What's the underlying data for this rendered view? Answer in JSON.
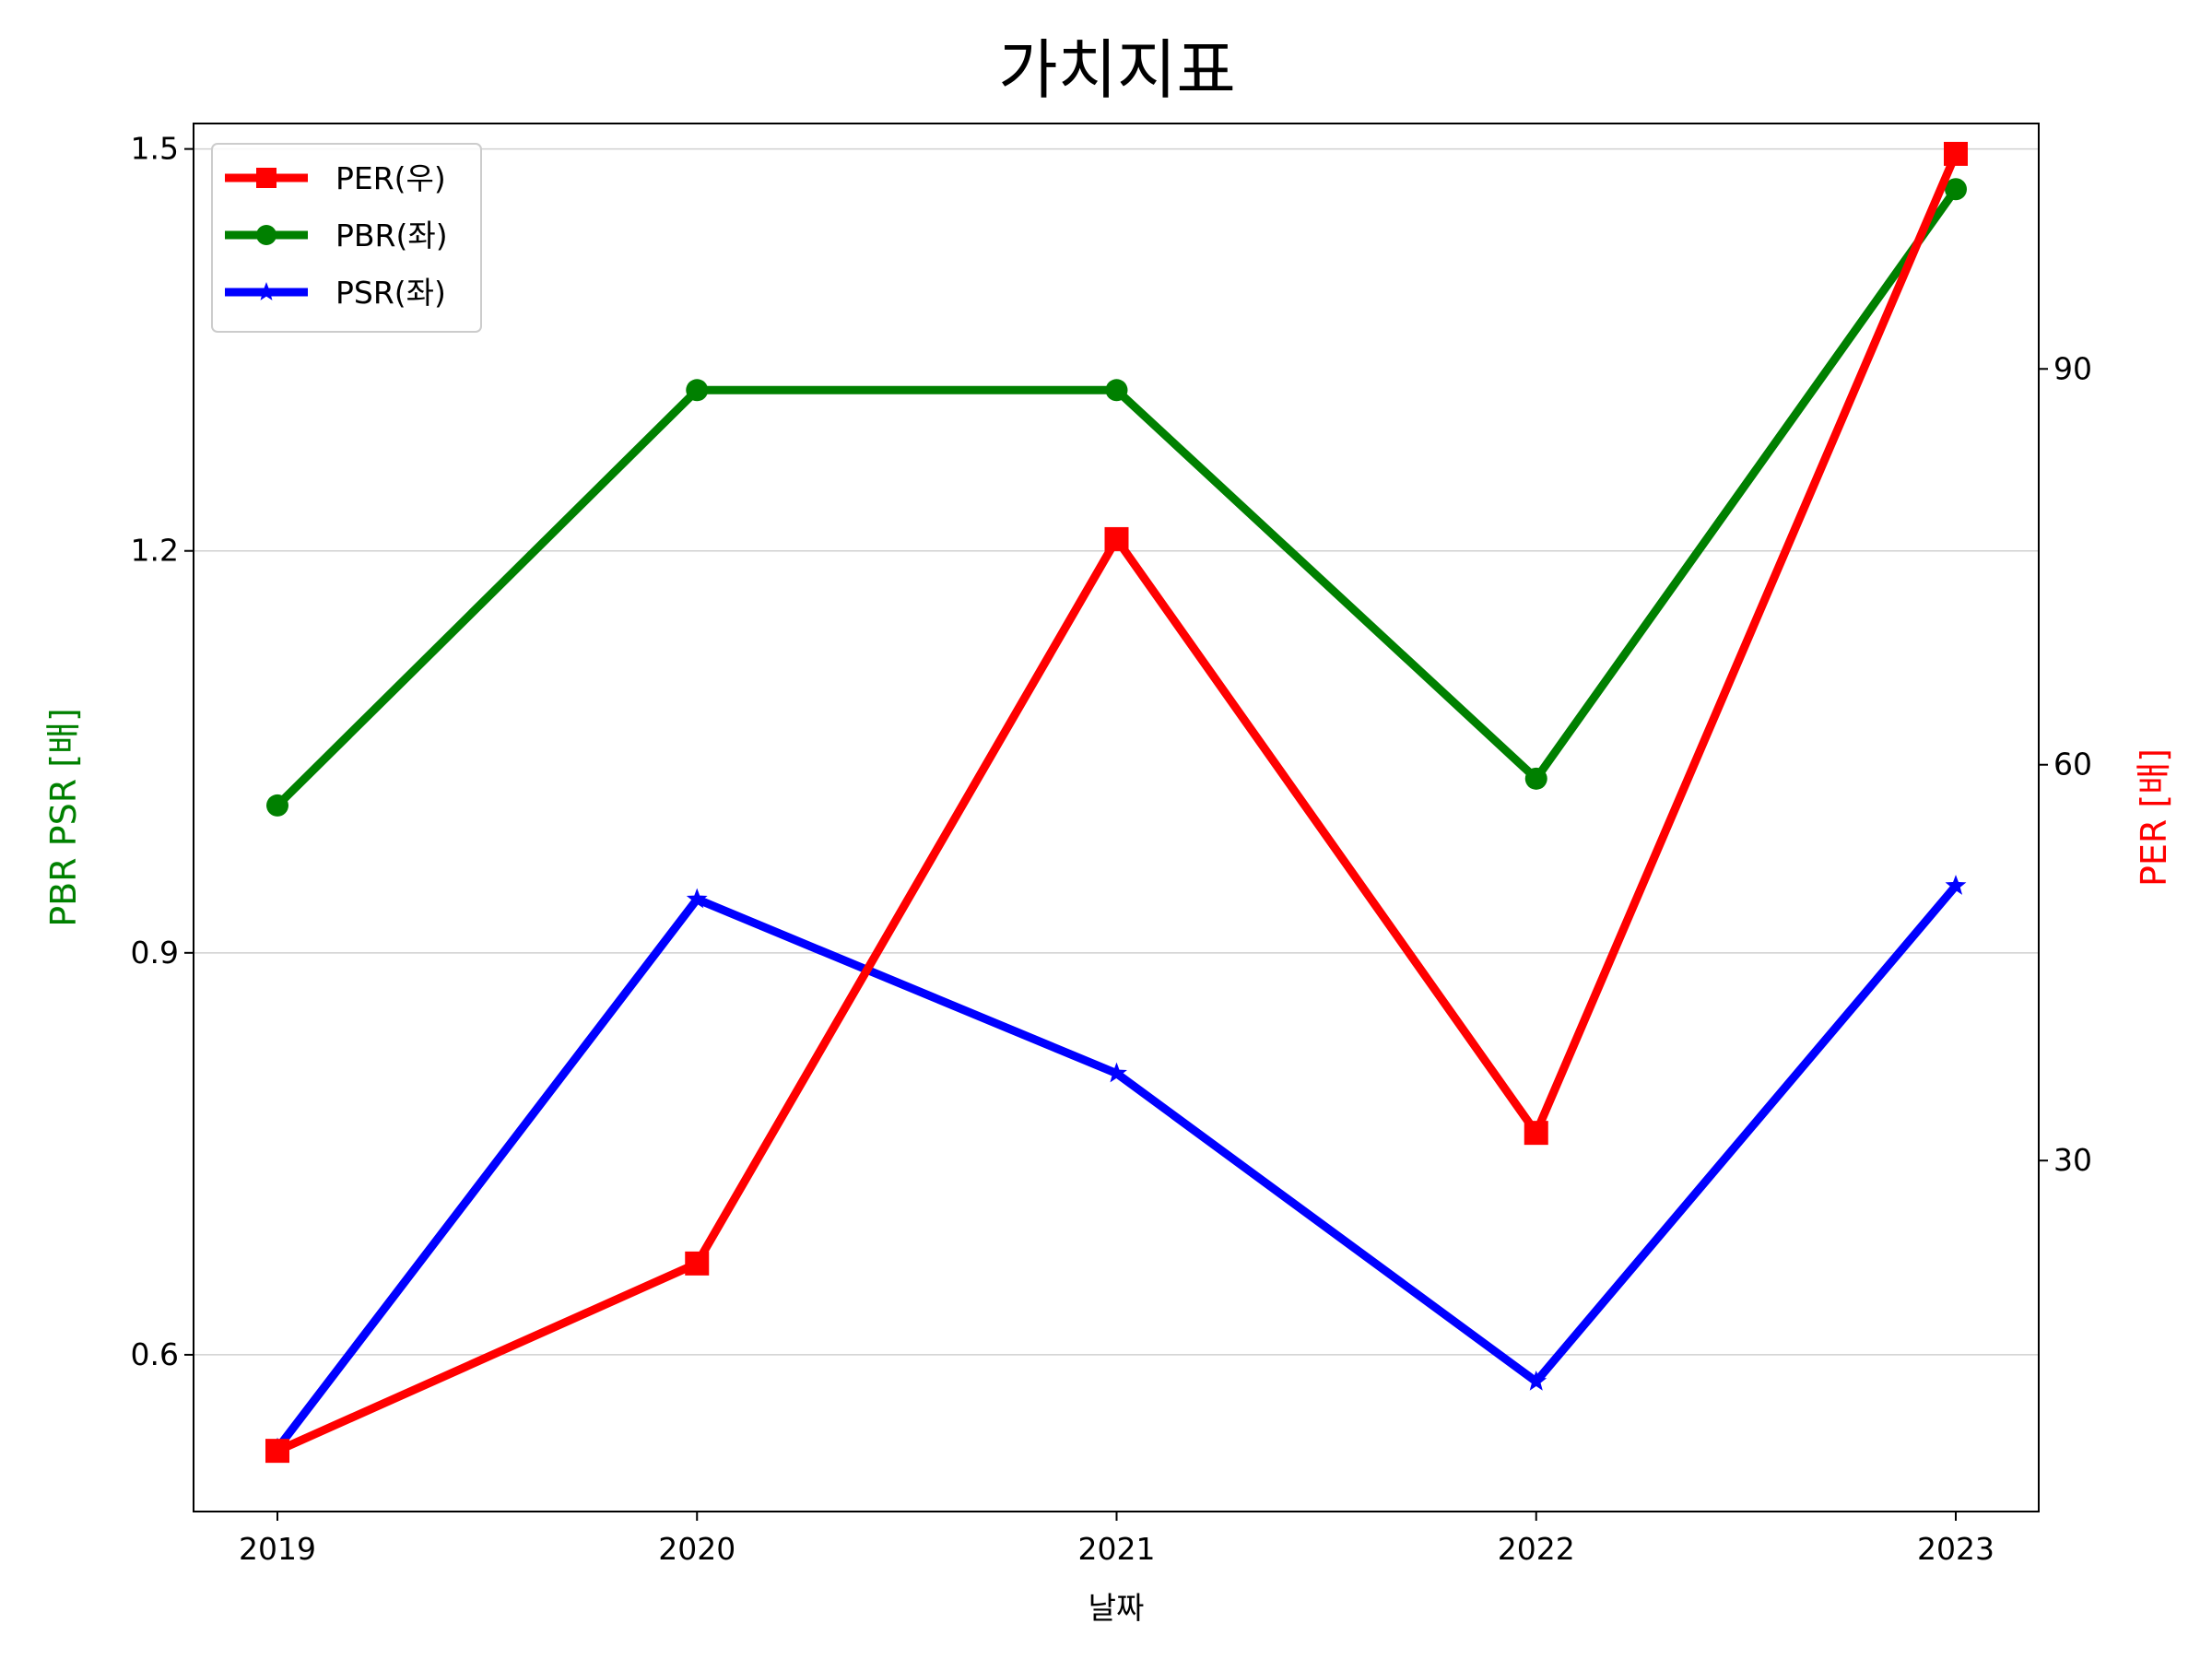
{
  "chart_data": {
    "type": "line",
    "title": "가치지표",
    "xlabel": "날짜",
    "ylabel_left": "PBR PSR [배]",
    "ylabel_right": "PER [배]",
    "categories": [
      "2019",
      "2020",
      "2021",
      "2022",
      "2023"
    ],
    "yticks_left": [
      "0.6",
      "0.9",
      "1.2",
      "1.5"
    ],
    "yticks_right": [
      "30",
      "60",
      "90"
    ],
    "ylim_left": [
      0.483,
      1.519
    ],
    "ylim_right": [
      3.4,
      108.6
    ],
    "grid": "horizontal (left axis)",
    "legend_position": "top-left",
    "series": [
      {
        "name": "PER(우)",
        "axis": "right",
        "color": "#ff0000",
        "marker": "square",
        "values": [
          8,
          22.2,
          77.1,
          32.1,
          106.3
        ]
      },
      {
        "name": "PBR(좌)",
        "axis": "left",
        "color": "#008000",
        "marker": "circle",
        "values": [
          1.01,
          1.32,
          1.32,
          1.03,
          1.47
        ]
      },
      {
        "name": "PSR(좌)",
        "axis": "left",
        "color": "#0000ff",
        "marker": "star",
        "values": [
          0.53,
          0.94,
          0.81,
          0.58,
          0.95
        ]
      }
    ]
  }
}
